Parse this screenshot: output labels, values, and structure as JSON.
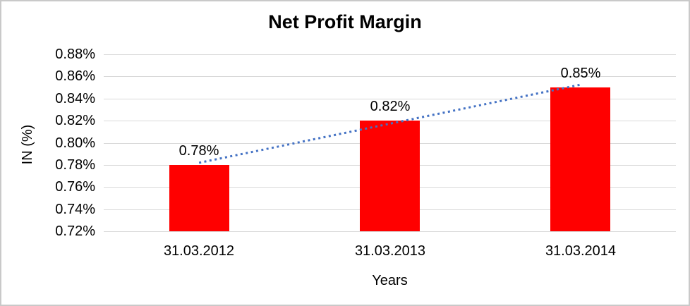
{
  "chart_data": {
    "type": "bar",
    "title": "Net Profit Margin",
    "xlabel": "Years",
    "ylabel": "IN (%)",
    "categories": [
      "31.03.2012",
      "31.03.2013",
      "31.03.2014"
    ],
    "values": [
      0.78,
      0.82,
      0.85
    ],
    "data_labels": [
      "0.78%",
      "0.82%",
      "0.85%"
    ],
    "unit": "%",
    "ylim": [
      0.72,
      0.88
    ],
    "ytick_step": 0.02,
    "ytick_labels": [
      "0.72%",
      "0.74%",
      "0.76%",
      "0.78%",
      "0.80%",
      "0.82%",
      "0.84%",
      "0.86%",
      "0.88%"
    ],
    "grid": "horizontal",
    "legend": "none",
    "colors": {
      "bar": "#ff0000",
      "trendline": "#4472c4",
      "gridline": "#d9d9d9",
      "text": "#000000",
      "chart_border": "#c9c9c9"
    },
    "trendline": {
      "type": "linear",
      "style": "dotted",
      "color": "#4472c4"
    }
  }
}
